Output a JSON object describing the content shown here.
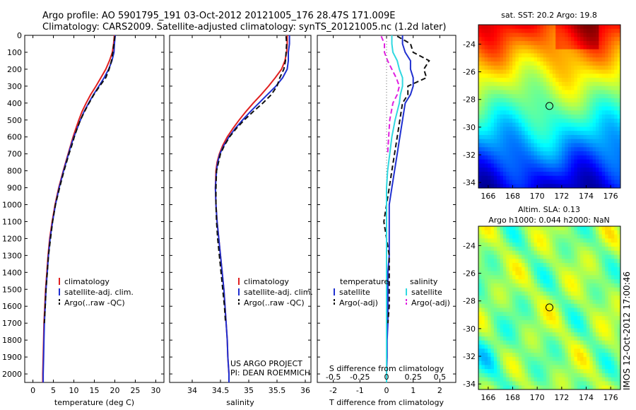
{
  "header": {
    "line1": "Argo profile: AO 5901795_191 03-Oct-2012 20121005_176 28.47S 171.009E",
    "line2": "Climatology: CARS2009. Satellite-adjusted climatology: synTS_20121005.nc (1.2d later)"
  },
  "colors": {
    "climatology": "#e02020",
    "satellite": "#1f2fd0",
    "argo": "#111111",
    "s_satellite": "#30d8e0",
    "s_argo": "#e020e0"
  },
  "depth_ticks": [
    0,
    100,
    200,
    300,
    400,
    500,
    600,
    700,
    800,
    900,
    1000,
    1100,
    1200,
    1300,
    1400,
    1500,
    1600,
    1700,
    1800,
    1900,
    2000
  ],
  "chart_data": [
    {
      "type": "line",
      "id": "temperature",
      "xlabel": "temperature (deg C)",
      "xlim": [
        -2,
        32
      ],
      "ylim": [
        2050,
        0
      ],
      "xticks": [
        0,
        5,
        10,
        15,
        20,
        25,
        30
      ],
      "legend": [
        "climatology",
        "satellite-adj. clim.",
        "Argo(..raw -QC)"
      ],
      "series": [
        {
          "name": "climatology",
          "color_key": "climatology",
          "depth": [
            0,
            50,
            100,
            150,
            200,
            250,
            300,
            350,
            400,
            450,
            500,
            550,
            600,
            650,
            700,
            800,
            900,
            1000,
            1100,
            1200,
            1300,
            1400,
            1500,
            1600,
            1700,
            1800,
            1900,
            2000,
            2050
          ],
          "values": [
            19.9,
            19.7,
            19.4,
            18.7,
            17.8,
            16.6,
            15.4,
            14.1,
            13.0,
            12.0,
            11.2,
            10.5,
            9.8,
            9.2,
            8.6,
            7.4,
            6.3,
            5.4,
            4.7,
            4.1,
            3.7,
            3.4,
            3.1,
            2.9,
            2.7,
            2.6,
            2.5,
            2.4,
            2.4
          ]
        },
        {
          "name": "satellite-adj. clim.",
          "color_key": "satellite",
          "depth": [
            0,
            50,
            100,
            150,
            200,
            250,
            300,
            350,
            400,
            450,
            500,
            550,
            600,
            650,
            700,
            800,
            900,
            1000,
            1100,
            1200,
            1300,
            1400,
            1500,
            1600,
            1700,
            1800,
            1900,
            2000,
            2050
          ],
          "values": [
            20.1,
            19.9,
            19.8,
            19.3,
            18.5,
            17.4,
            16.1,
            14.8,
            13.6,
            12.5,
            11.6,
            10.8,
            10.0,
            9.3,
            8.7,
            7.5,
            6.4,
            5.5,
            4.8,
            4.2,
            3.8,
            3.5,
            3.2,
            3.0,
            2.8,
            2.7,
            2.6,
            2.5,
            2.5
          ]
        },
        {
          "name": "Argo(..raw -QC)",
          "color_key": "argo",
          "dash": true,
          "depth": [
            5,
            50,
            100,
            150,
            200,
            250,
            300,
            350,
            400,
            450,
            500,
            550,
            600,
            650,
            700,
            800,
            900,
            1000,
            1100,
            1200,
            1300,
            1400,
            1500,
            1600,
            1700
          ],
          "values": [
            20.0,
            19.8,
            19.5,
            19.2,
            18.6,
            17.8,
            16.3,
            14.9,
            13.7,
            12.6,
            11.6,
            10.8,
            10.1,
            9.5,
            8.8,
            7.6,
            6.5,
            5.5,
            4.8,
            4.3,
            3.8,
            3.5,
            3.2,
            3.0,
            2.8
          ]
        }
      ]
    },
    {
      "type": "line",
      "id": "salinity",
      "xlabel": "salinity",
      "xlim": [
        33.6,
        36.1
      ],
      "ylim": [
        2050,
        0
      ],
      "xticks": [
        34,
        34.5,
        35,
        35.5,
        36
      ],
      "xticklabels": [
        "34",
        "34.5",
        "35",
        "35.5",
        "36"
      ],
      "legend": [
        "climatology",
        "satellite-adj. clim.",
        "Argo(..raw -QC)"
      ],
      "annotation": [
        "US ARGO PROJECT",
        "PI: DEAN ROEMMICH"
      ],
      "series": [
        {
          "name": "climatology",
          "color_key": "climatology",
          "depth": [
            0,
            50,
            100,
            150,
            200,
            250,
            300,
            350,
            400,
            450,
            500,
            550,
            600,
            650,
            700,
            750,
            800,
            900,
            1000,
            1100,
            1200,
            1300,
            1400,
            1500,
            1600,
            1700,
            1800,
            1900,
            2000,
            2050
          ],
          "values": [
            35.68,
            35.68,
            35.67,
            35.64,
            35.58,
            35.47,
            35.35,
            35.22,
            35.08,
            34.95,
            34.83,
            34.72,
            34.62,
            34.54,
            34.48,
            34.44,
            34.42,
            34.41,
            34.42,
            34.44,
            34.47,
            34.5,
            34.53,
            34.56,
            34.58,
            34.6,
            34.62,
            34.63,
            34.65,
            34.65
          ]
        },
        {
          "name": "satellite-adj. clim.",
          "color_key": "satellite",
          "depth": [
            0,
            50,
            100,
            150,
            200,
            250,
            300,
            350,
            400,
            450,
            500,
            550,
            600,
            650,
            700,
            750,
            800,
            900,
            1000,
            1100,
            1200,
            1300,
            1400,
            1500,
            1600,
            1700,
            1800,
            1900,
            2000,
            2050
          ],
          "values": [
            35.72,
            35.72,
            35.7,
            35.7,
            35.68,
            35.6,
            35.48,
            35.33,
            35.18,
            35.03,
            34.89,
            34.76,
            34.65,
            34.56,
            34.49,
            34.45,
            34.43,
            34.41,
            34.42,
            34.44,
            34.47,
            34.5,
            34.53,
            34.56,
            34.58,
            34.6,
            34.62,
            34.63,
            34.65,
            34.65
          ]
        },
        {
          "name": "Argo(..raw -QC)",
          "color_key": "argo",
          "dash": true,
          "depth": [
            5,
            50,
            100,
            150,
            200,
            250,
            300,
            350,
            400,
            450,
            500,
            550,
            600,
            650,
            700,
            800,
            900,
            1000,
            1100,
            1200,
            1300,
            1400,
            1500,
            1600,
            1700
          ],
          "values": [
            35.66,
            35.67,
            35.66,
            35.65,
            35.62,
            35.55,
            35.5,
            35.4,
            35.25,
            35.08,
            34.92,
            34.78,
            34.66,
            34.57,
            34.5,
            34.43,
            34.42,
            34.42,
            34.43,
            34.45,
            34.48,
            34.51,
            34.54,
            34.57,
            34.59
          ]
        }
      ]
    },
    {
      "type": "line",
      "id": "difference",
      "xlabel": "T difference from climatology",
      "xlabel_top": "S difference from climatology",
      "xlim": [
        -2.6,
        2.6
      ],
      "ylim": [
        2050,
        0
      ],
      "xticks": [
        -2,
        -1,
        0,
        1,
        2
      ],
      "xticklabels": [
        "-2",
        "-1",
        "0",
        "1",
        "2"
      ],
      "sticks": [
        -0.5,
        -0.25,
        0,
        0.25,
        0.5
      ],
      "sticklabels": [
        "-0.5",
        "-0.25",
        "0",
        "0.25",
        "0.5"
      ],
      "legend_headers": [
        "temperature",
        "salinity"
      ],
      "legend": [
        "satellite",
        "Argo(-adj)",
        "satellite",
        "Argo(-adj)"
      ],
      "series": [
        {
          "name": "satellite",
          "group": "temperature",
          "color_key": "satellite",
          "depth": [
            0,
            50,
            100,
            150,
            200,
            250,
            300,
            350,
            400,
            500,
            600,
            700,
            800,
            900,
            1000,
            1100,
            1200,
            1300,
            1400,
            1500,
            1600,
            1700,
            1800,
            1900,
            2000,
            2050
          ],
          "values": [
            0.6,
            0.6,
            0.7,
            0.9,
            0.9,
            1.0,
            1.0,
            0.9,
            0.7,
            0.6,
            0.5,
            0.4,
            0.3,
            0.2,
            0.1,
            0.1,
            0.1,
            0.1,
            0.05,
            0.05,
            0.05,
            0.05,
            0.02,
            0.02,
            0.0,
            0.0
          ]
        },
        {
          "name": "Argo(-adj)",
          "group": "temperature",
          "color_key": "argo",
          "dash": true,
          "depth": [
            5,
            50,
            100,
            150,
            200,
            250,
            300,
            350,
            400,
            500,
            600,
            700,
            800,
            900,
            1000,
            1100,
            1200,
            1300,
            1400,
            1500,
            1600,
            1700
          ],
          "values": [
            0.4,
            0.9,
            1.0,
            1.6,
            1.4,
            1.5,
            0.8,
            0.8,
            0.6,
            0.5,
            0.4,
            0.3,
            0.2,
            0.1,
            0.0,
            -0.1,
            0.0,
            0.1,
            0.1,
            0.1,
            0.1,
            0.05
          ]
        },
        {
          "name": "satellite",
          "group": "salinity",
          "color_key": "s_satellite",
          "depth": [
            0,
            50,
            100,
            150,
            200,
            250,
            300,
            350,
            400,
            500,
            600,
            700,
            800,
            900,
            1000,
            1100,
            1200,
            1300,
            1400,
            1500,
            1600,
            1700,
            1800,
            1900,
            2000,
            2050
          ],
          "values": [
            0.05,
            0.05,
            0.06,
            0.1,
            0.12,
            0.15,
            0.15,
            0.13,
            0.12,
            0.08,
            0.05,
            0.03,
            0.01,
            0.0,
            0.0,
            0.0,
            0.0,
            0.0,
            0.0,
            0.0,
            0.0,
            0.0,
            0.0,
            0.0,
            0.0,
            0.0
          ]
        },
        {
          "name": "Argo(-adj)",
          "group": "salinity",
          "color_key": "s_argo",
          "dash": true,
          "depth": [
            5,
            50,
            100,
            150,
            200,
            250,
            300,
            350,
            400,
            500,
            600,
            700
          ],
          "values": [
            -0.05,
            -0.02,
            -0.02,
            0.01,
            0.05,
            0.09,
            0.12,
            0.1,
            0.06,
            0.03,
            0.02,
            0.01
          ]
        }
      ]
    },
    {
      "type": "heatmap",
      "id": "sst-map",
      "title": "sat. SST: 20.2  Argo: 19.8",
      "xlim": [
        165.2,
        176.8
      ],
      "ylim": [
        -34.4,
        -22.6
      ],
      "xticks": [
        166,
        168,
        170,
        172,
        174,
        176
      ],
      "yticks": [
        -24,
        -26,
        -28,
        -30,
        -32,
        -34
      ],
      "marker": {
        "lon": 171.0,
        "lat": -28.47
      }
    },
    {
      "type": "heatmap",
      "id": "sla-map",
      "title": "Altim. SLA: 0.13",
      "subtitle": "Argo h1000: 0.044 h2000: NaN",
      "xlim": [
        165.2,
        176.8
      ],
      "ylim": [
        -34.4,
        -22.6
      ],
      "xticks": [
        166,
        168,
        170,
        172,
        174,
        176
      ],
      "yticks": [
        -24,
        -26,
        -28,
        -30,
        -32,
        -34
      ],
      "marker": {
        "lon": 171.0,
        "lat": -28.47
      }
    }
  ],
  "footer_stamp": "IMOS 12-Oct-2012 17:00:46"
}
